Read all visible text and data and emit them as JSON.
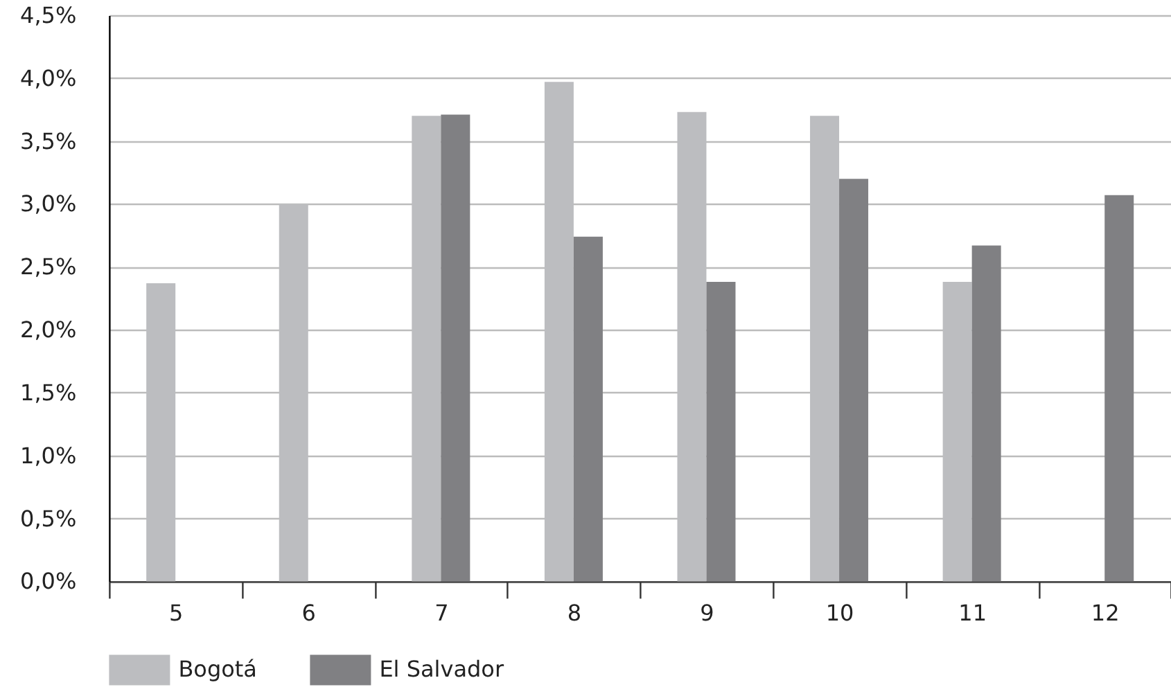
{
  "chart_data": {
    "type": "bar",
    "categories": [
      "5",
      "6",
      "7",
      "8",
      "9",
      "10",
      "11",
      "12"
    ],
    "series": [
      {
        "name": "Bogotá",
        "color": "#bcbdc0",
        "values": [
          2.37,
          3.0,
          3.7,
          3.97,
          3.73,
          3.7,
          2.38,
          null
        ]
      },
      {
        "name": "El Salvador",
        "color": "#808083",
        "values": [
          null,
          null,
          3.71,
          2.74,
          2.38,
          3.2,
          2.67,
          3.07
        ]
      }
    ],
    "ylim": [
      0,
      4.5
    ],
    "yticks": [
      {
        "value": 0,
        "label": "0,0%"
      },
      {
        "value": 0.5,
        "label": "0,5%"
      },
      {
        "value": 1,
        "label": "1,0%"
      },
      {
        "value": 1.5,
        "label": "1,5%"
      },
      {
        "value": 2,
        "label": "2,0%"
      },
      {
        "value": 2.5,
        "label": "2,5%"
      },
      {
        "value": 3,
        "label": "3,0%"
      },
      {
        "value": 3.5,
        "label": "3,5%"
      },
      {
        "value": 4,
        "label": "4,0%"
      },
      {
        "value": 4.5,
        "label": "4,5%"
      }
    ],
    "grid": "y",
    "legend": "bottom"
  }
}
